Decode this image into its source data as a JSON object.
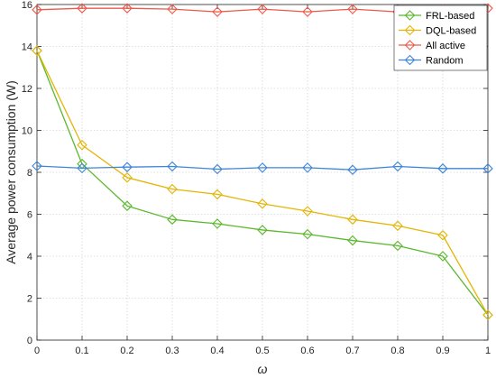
{
  "chart_data": {
    "type": "line",
    "xlabel": "ω",
    "ylabel": "Average power consumption (W)",
    "xlim": [
      0,
      1
    ],
    "ylim": [
      0,
      16
    ],
    "x_ticks": [
      "0",
      "0.1",
      "0.2",
      "0.3",
      "0.4",
      "0.5",
      "0.6",
      "0.7",
      "0.8",
      "0.9",
      "1"
    ],
    "y_ticks": [
      "0",
      "2",
      "4",
      "6",
      "8",
      "10",
      "12",
      "14",
      "16"
    ],
    "grid": true,
    "legend_position": "top-right",
    "x": [
      0,
      0.1,
      0.2,
      0.3,
      0.4,
      0.5,
      0.6,
      0.7,
      0.8,
      0.9,
      1.0
    ],
    "series": [
      {
        "name": "FRL-based",
        "color": "#5cb82e",
        "values": [
          13.8,
          8.4,
          6.4,
          5.75,
          5.55,
          5.25,
          5.05,
          4.75,
          4.5,
          4.0,
          1.2
        ]
      },
      {
        "name": "DQL-based",
        "color": "#e3b505",
        "values": [
          13.8,
          9.3,
          7.75,
          7.2,
          6.95,
          6.5,
          6.15,
          5.75,
          5.45,
          5.0,
          1.2
        ]
      },
      {
        "name": "All active",
        "color": "#ee5a4a",
        "values": [
          15.75,
          15.82,
          15.82,
          15.78,
          15.65,
          15.78,
          15.65,
          15.78,
          15.65,
          15.78,
          15.82
        ]
      },
      {
        "name": "Random",
        "color": "#3d85d6",
        "values": [
          8.3,
          8.2,
          8.25,
          8.28,
          8.15,
          8.22,
          8.22,
          8.12,
          8.28,
          8.18,
          8.18
        ]
      }
    ]
  }
}
